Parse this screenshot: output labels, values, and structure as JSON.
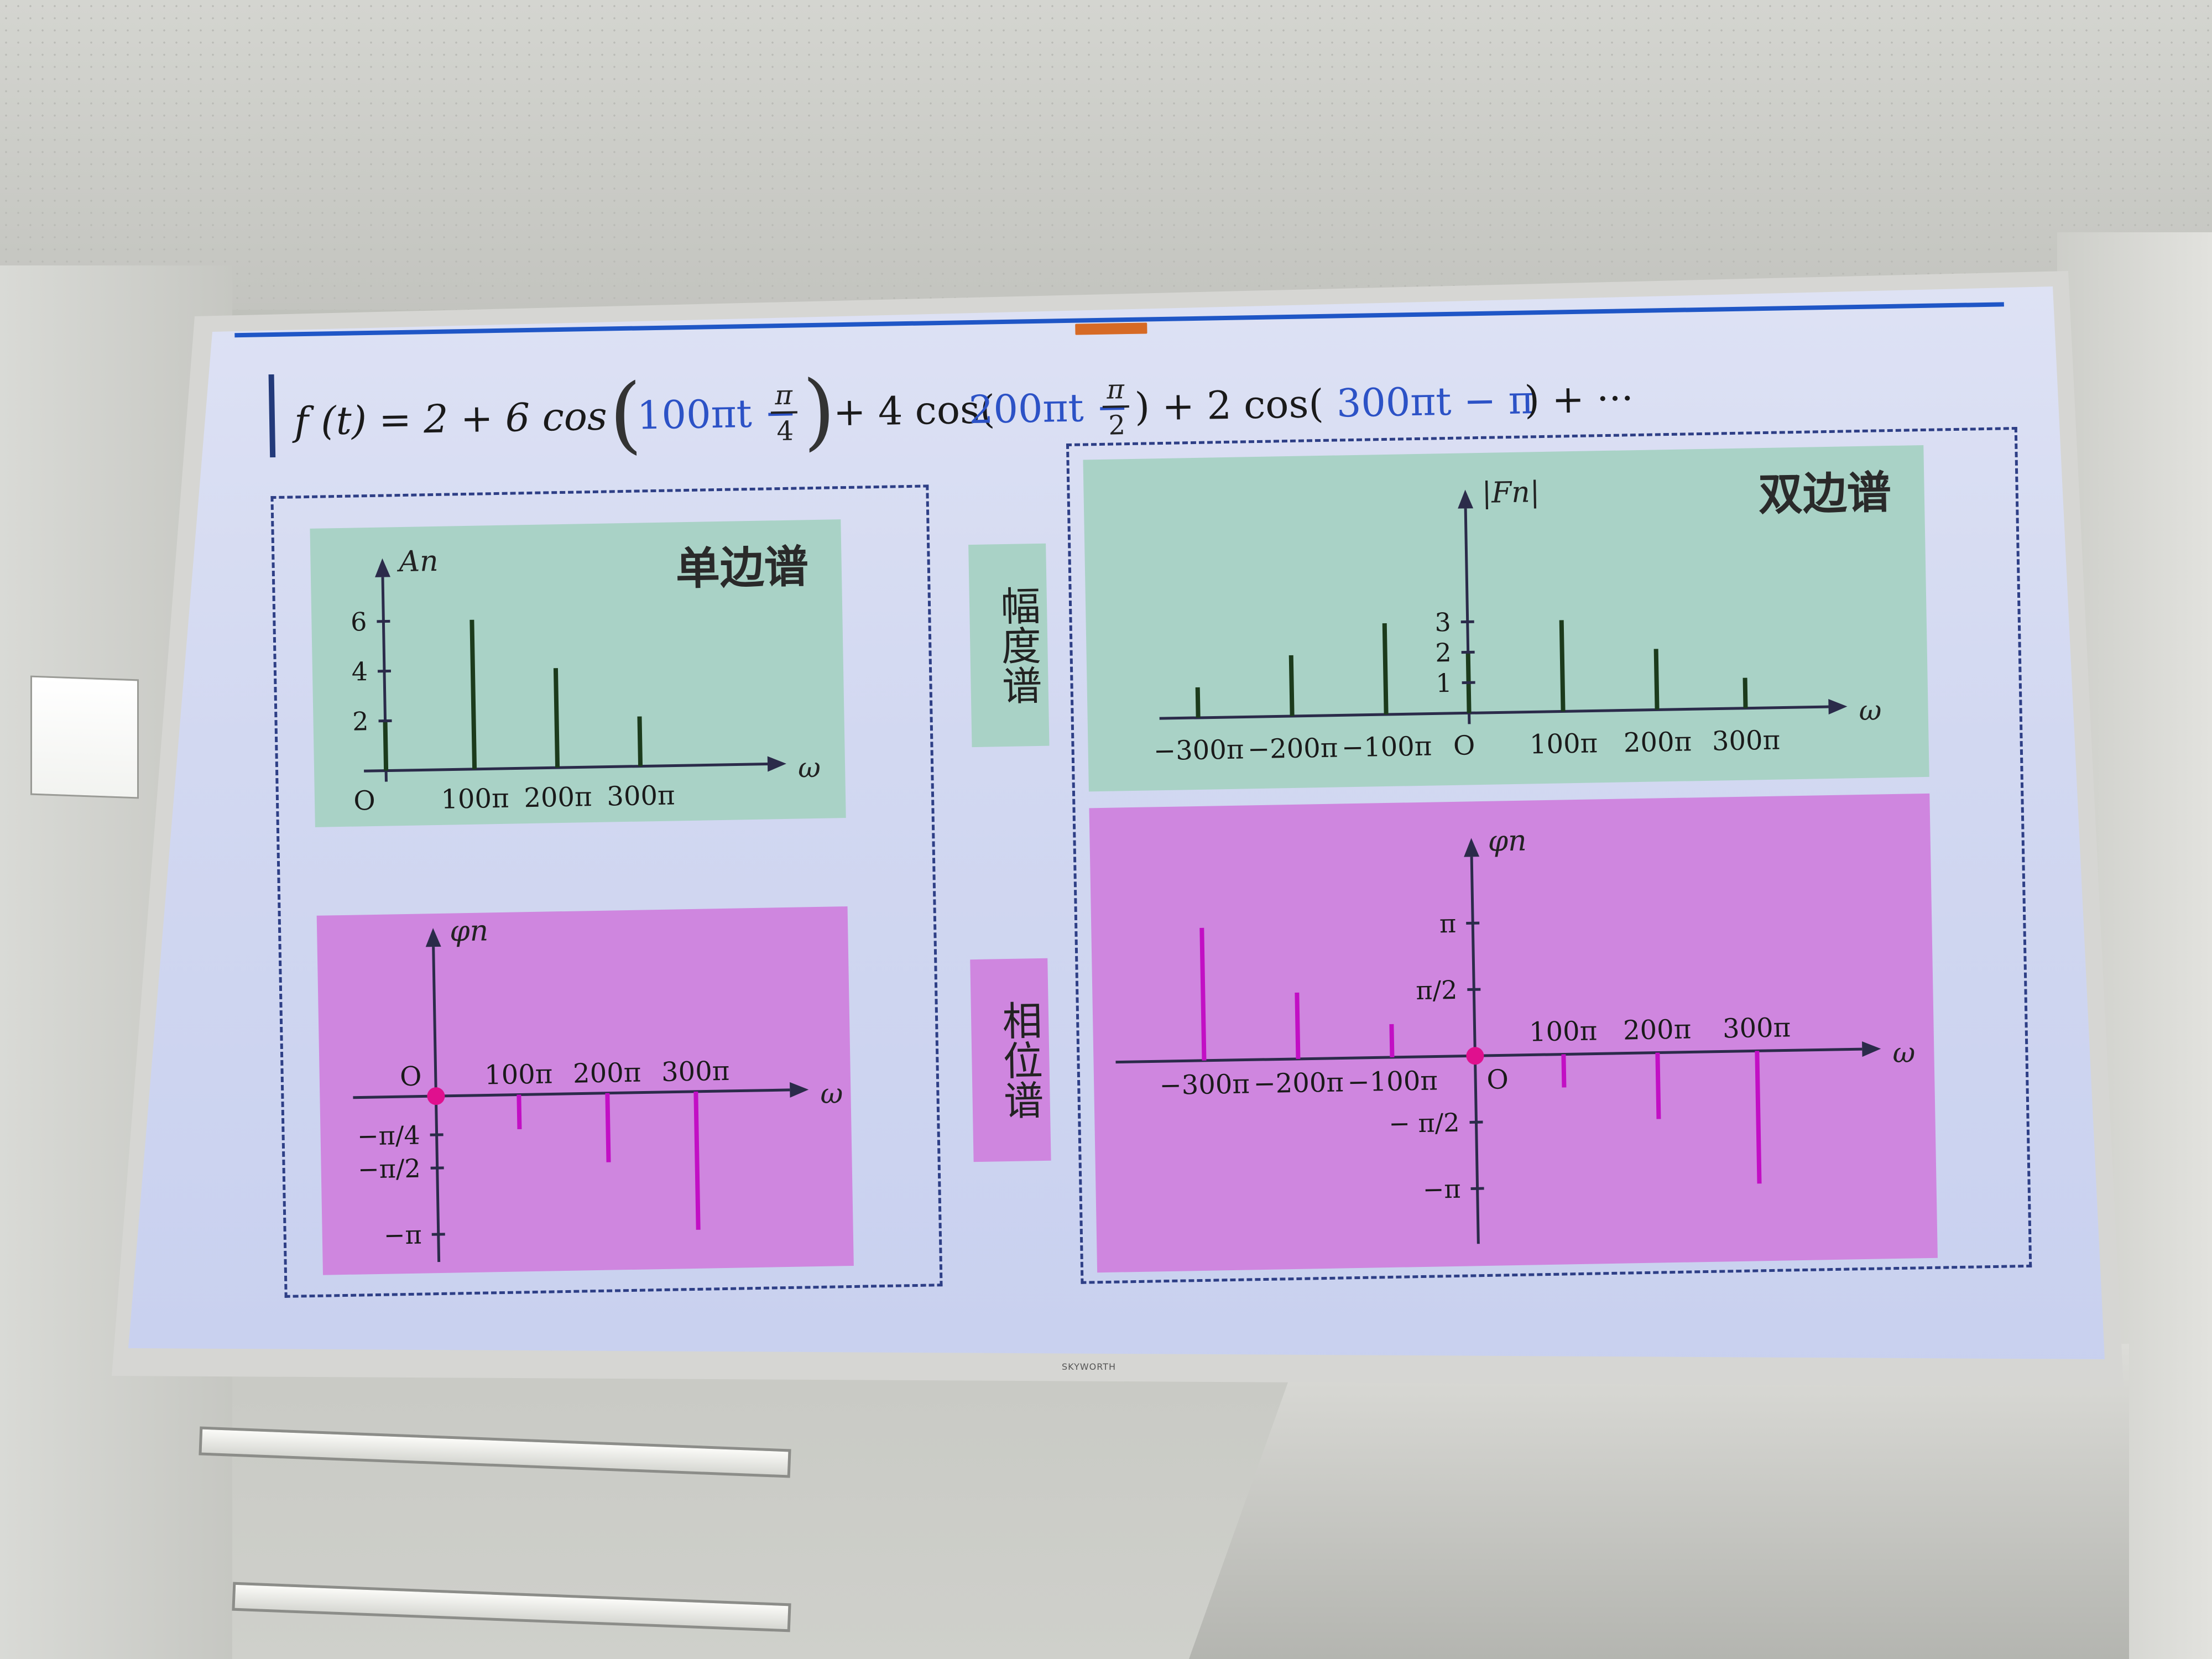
{
  "slide": {
    "formula": {
      "lhs": "f (t) = 2 + 6 cos",
      "term1_inner": "100πt −",
      "term1_phase_num": "π",
      "term1_phase_den": "4",
      "mid": "+ 4 cos(",
      "term2_inner": "200πt −",
      "term2_phase_num": "π",
      "term2_phase_den": "2",
      "mid2": ") + 2 cos(",
      "term3_inner": "300πt − π",
      "tail": ") + ···"
    },
    "labels": {
      "one_sided": "单边谱",
      "two_sided": "双边谱",
      "amplitude": "幅度谱",
      "phase": "相位谱"
    },
    "brand": "SKYWORTH",
    "colors": {
      "green_panel": "#a9d2c6",
      "pink_panel": "#cf86df",
      "accent_blue": "#1f56c6",
      "phase_line": "#c20fc4",
      "amp_line": "#1c3b1c"
    }
  },
  "chart_data": [
    {
      "type": "bar",
      "name_label": "单边谱",
      "ylabel": "An",
      "xlabel": "ω",
      "categories": [
        "O",
        "100π",
        "200π",
        "300π"
      ],
      "values": [
        2,
        6,
        4,
        2
      ],
      "yticks": [
        "2",
        "4",
        "6"
      ],
      "ylim": [
        0,
        7
      ]
    },
    {
      "type": "bar",
      "name_label": "双边谱",
      "ylabel": "|Fn|",
      "xlabel": "ω",
      "categories": [
        "−300π",
        "−200π",
        "−100π",
        "O",
        "100π",
        "200π",
        "300π"
      ],
      "values": [
        1,
        2,
        3,
        2,
        3,
        2,
        1
      ],
      "yticks": [
        "1",
        "2",
        "3"
      ],
      "ylim": [
        0,
        4
      ]
    },
    {
      "type": "bar",
      "ylabel": "φn",
      "xlabel": "ω",
      "categories": [
        "O",
        "100π",
        "200π",
        "300π"
      ],
      "values": [
        0,
        -0.25,
        -0.5,
        -1
      ],
      "yticks": [
        "−π/4",
        "−π/2",
        "−π"
      ],
      "ylim": [
        -1.1,
        0.2
      ]
    },
    {
      "type": "bar",
      "ylabel": "φn",
      "xlabel": "ω",
      "categories": [
        "−300π",
        "−200π",
        "−100π",
        "O",
        "100π",
        "200π",
        "300π"
      ],
      "values": [
        1,
        0.5,
        0.25,
        0,
        -0.25,
        -0.5,
        -1
      ],
      "yticks": [
        "π",
        "π/2",
        "− π/2",
        "−π"
      ],
      "ylim": [
        -1.1,
        1.2
      ]
    }
  ]
}
